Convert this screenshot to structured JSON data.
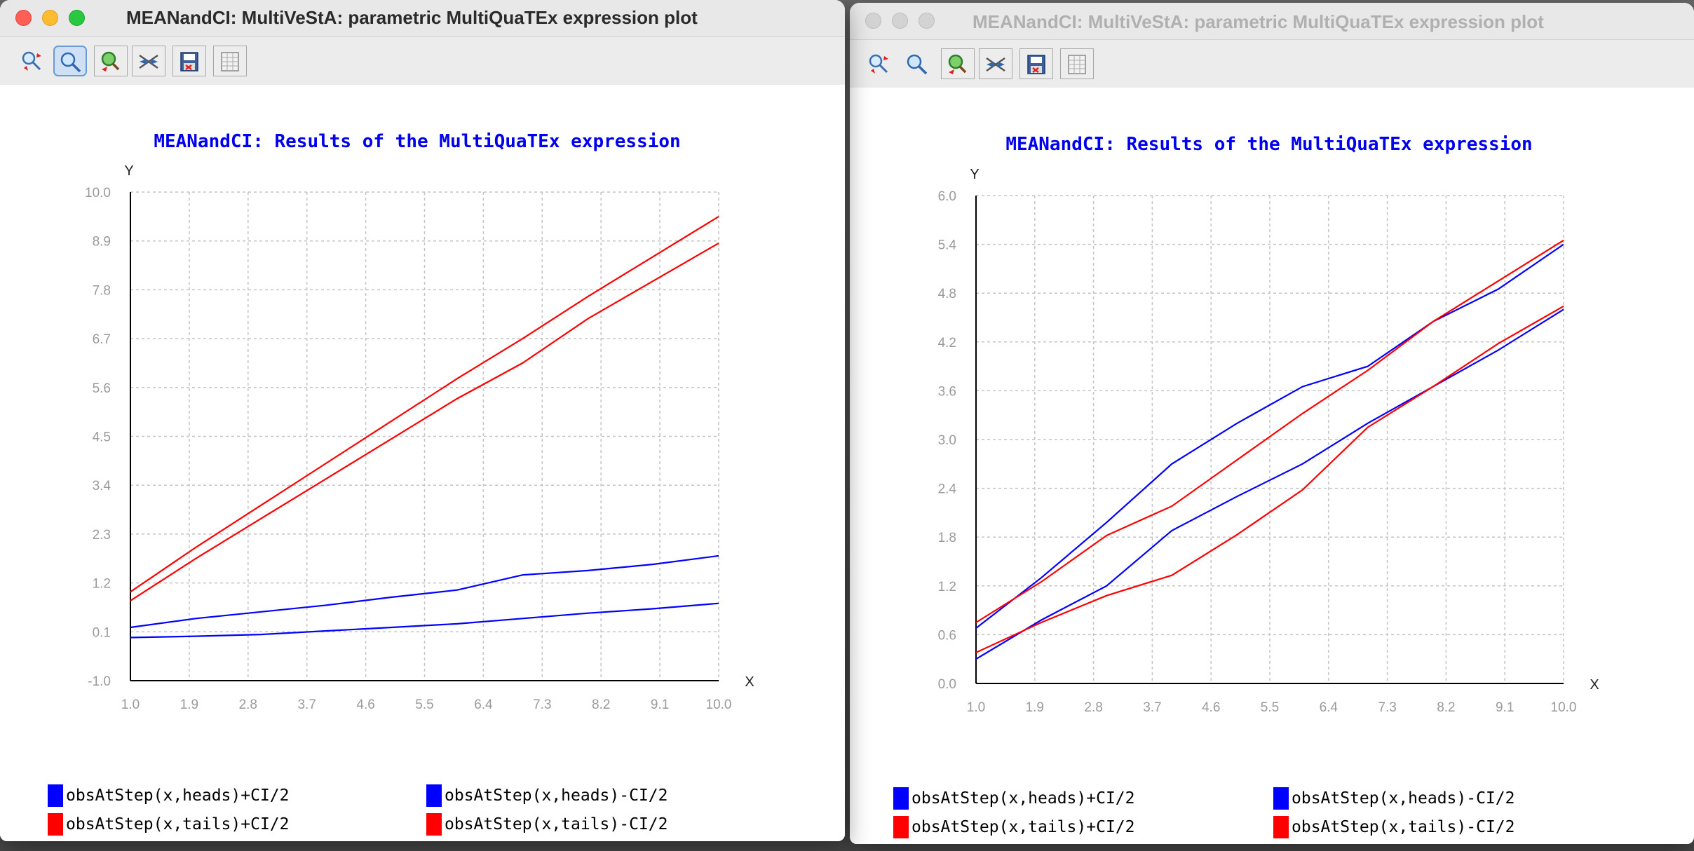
{
  "windows": [
    {
      "title": "MEANandCI: MultiVeStA: parametric MultiQuaTEx expression plot",
      "state": "active",
      "toolbar": [
        {
          "icon": "zoom-in-out-icon",
          "pressed": false
        },
        {
          "icon": "magnifier-icon",
          "pressed": true
        },
        {
          "icon": "zoom-reset-icon",
          "pressed": false
        },
        {
          "icon": "config-tools-icon",
          "pressed": false
        },
        {
          "icon": "save-export-icon",
          "pressed": false
        },
        {
          "icon": "table-view-icon",
          "pressed": false
        }
      ],
      "chart_data": {
        "type": "line",
        "title": "MEANandCI: Results of the MultiQuaTEx expression",
        "xlabel": "X",
        "ylabel": "Y",
        "xlim": [
          1.0,
          10.0
        ],
        "ylim": [
          -1.0,
          10.0
        ],
        "x_ticks": [
          "1.0",
          "1.9",
          "2.8",
          "3.7",
          "4.6",
          "5.5",
          "6.4",
          "7.3",
          "8.2",
          "9.1",
          "10.0"
        ],
        "y_ticks": [
          "-1.0",
          "0.1",
          "1.2",
          "2.3",
          "3.4",
          "4.5",
          "5.6",
          "6.7",
          "7.8",
          "8.9",
          "10.0"
        ],
        "grid": true,
        "legend_position": "bottom",
        "x": [
          1,
          2,
          3,
          4,
          5,
          6,
          7,
          8,
          9,
          10
        ],
        "series": [
          {
            "name": "obsAtStep(x,heads)+CI/2",
            "color": "#0000ff",
            "values": [
              0.2,
              0.4,
              0.55,
              0.7,
              0.88,
              1.04,
              1.38,
              1.48,
              1.62,
              1.81
            ]
          },
          {
            "name": "obsAtStep(x,heads)-CI/2",
            "color": "#0000ff",
            "values": [
              -0.03,
              0.0,
              0.04,
              0.12,
              0.2,
              0.28,
              0.4,
              0.52,
              0.62,
              0.74
            ]
          },
          {
            "name": "obsAtStep(x,tails)+CI/2",
            "color": "#ff0000",
            "values": [
              1.0,
              2.0,
              2.95,
              3.9,
              4.85,
              5.8,
              6.7,
              7.65,
              8.55,
              9.45
            ]
          },
          {
            "name": "obsAtStep(x,tails)-CI/2",
            "color": "#ff0000",
            "values": [
              0.8,
              1.75,
              2.65,
              3.55,
              4.45,
              5.35,
              6.15,
              7.15,
              8.0,
              8.85
            ]
          }
        ]
      }
    },
    {
      "title": "MEANandCI: MultiVeStA: parametric MultiQuaTEx expression plot",
      "state": "inactive",
      "toolbar": [
        {
          "icon": "zoom-in-out-icon",
          "pressed": false
        },
        {
          "icon": "magnifier-icon",
          "pressed": false
        },
        {
          "icon": "zoom-reset-icon",
          "pressed": false
        },
        {
          "icon": "config-tools-icon",
          "pressed": false
        },
        {
          "icon": "save-export-icon",
          "pressed": false
        },
        {
          "icon": "table-view-icon",
          "pressed": false
        }
      ],
      "chart_data": {
        "type": "line",
        "title": "MEANandCI: Results of the MultiQuaTEx expression",
        "xlabel": "X",
        "ylabel": "Y",
        "xlim": [
          1.0,
          10.0
        ],
        "ylim": [
          0.0,
          6.0
        ],
        "x_ticks": [
          "1.0",
          "1.9",
          "2.8",
          "3.7",
          "4.6",
          "5.5",
          "6.4",
          "7.3",
          "8.2",
          "9.1",
          "10.0"
        ],
        "y_ticks": [
          "0.0",
          "0.6",
          "1.2",
          "1.8",
          "2.4",
          "3.0",
          "3.6",
          "4.2",
          "4.8",
          "5.4",
          "6.0"
        ],
        "grid": true,
        "legend_position": "bottom",
        "x": [
          1,
          2,
          3,
          4,
          5,
          6,
          7,
          8,
          9,
          10
        ],
        "series": [
          {
            "name": "obsAtStep(x,heads)+CI/2",
            "color": "#0000ff",
            "values": [
              0.68,
              1.3,
              1.98,
              2.7,
              3.2,
              3.65,
              3.9,
              4.45,
              4.85,
              5.4
            ]
          },
          {
            "name": "obsAtStep(x,heads)-CI/2",
            "color": "#0000ff",
            "values": [
              0.3,
              0.78,
              1.2,
              1.88,
              2.3,
              2.7,
              3.2,
              3.65,
              4.1,
              4.6
            ]
          },
          {
            "name": "obsAtStep(x,tails)+CI/2",
            "color": "#ff0000",
            "values": [
              0.75,
              1.25,
              1.82,
              2.18,
              2.75,
              3.32,
              3.85,
              4.45,
              4.95,
              5.45
            ]
          },
          {
            "name": "obsAtStep(x,tails)-CI/2",
            "color": "#ff0000",
            "values": [
              0.38,
              0.75,
              1.08,
              1.33,
              1.83,
              2.38,
              3.15,
              3.65,
              4.18,
              4.64
            ]
          }
        ]
      }
    }
  ]
}
